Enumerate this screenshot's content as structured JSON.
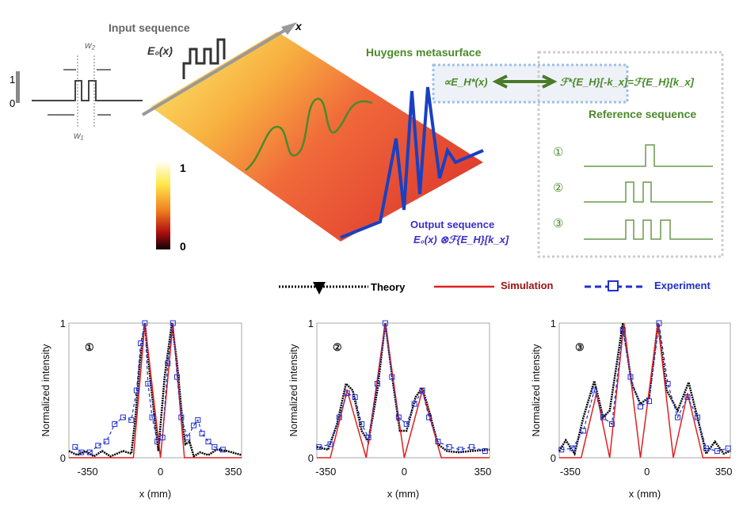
{
  "diagram": {
    "input_title": "Input sequence",
    "e0": "E₀(x)",
    "x_axis": "x",
    "w2": "w₂",
    "w1": "w₁",
    "level_1": "1",
    "level_0": "0",
    "colorbar_max": "1",
    "colorbar_min": "0",
    "huygens": "Huygens metasurface",
    "formula_left": "∝E_H*(x)",
    "formula_right": "ℱ*{E_H}[-k_x]=ℱ{E_H}[k_x]",
    "reference_title": "Reference sequence",
    "reference_labels": [
      "①",
      "②",
      "③"
    ],
    "output_title": "Output sequence",
    "output_formula": "E₀(x) ⊗ℱ{E_H}[k_x]"
  },
  "legend": {
    "theory": "Theory",
    "simulation": "Simulation",
    "experiment": "Experiment"
  },
  "colors": {
    "theory": "#000000",
    "simulation": "#e02020",
    "experiment": "#2030d0",
    "green": "#4a8a2a"
  },
  "chart_data": [
    {
      "type": "line",
      "label": "①",
      "ylabel": "Normalized intensity",
      "xlabel": "x (mm)",
      "xticks": [
        "-350",
        "0",
        "350"
      ],
      "yticks": [
        "0",
        "1"
      ],
      "xlim": [
        -440,
        390
      ],
      "ylim": [
        0,
        1
      ],
      "series": [
        {
          "name": "Theory",
          "points": [
            [
              -440,
              0.05
            ],
            [
              -400,
              0.02
            ],
            [
              -360,
              0.05
            ],
            [
              -320,
              0.01
            ],
            [
              -280,
              0.05
            ],
            [
              -240,
              0.01
            ],
            [
              -180,
              0.05
            ],
            [
              -140,
              0.03
            ],
            [
              -120,
              0.3
            ],
            [
              -100,
              0.7
            ],
            [
              -75,
              1
            ],
            [
              -50,
              0.6
            ],
            [
              -10,
              0.05
            ],
            [
              20,
              0.6
            ],
            [
              55,
              1
            ],
            [
              80,
              0.7
            ],
            [
              110,
              0.2
            ],
            [
              120,
              0.1
            ],
            [
              140,
              0.12
            ],
            [
              160,
              0.01
            ],
            [
              190,
              0.04
            ],
            [
              230,
              0.02
            ],
            [
              270,
              0.06
            ],
            [
              320,
              0.05
            ],
            [
              390,
              0.02
            ]
          ]
        },
        {
          "name": "Simulation",
          "points": [
            [
              -440,
              0
            ],
            [
              -130,
              0
            ],
            [
              -75,
              1
            ],
            [
              0,
              0
            ],
            [
              60,
              1
            ],
            [
              115,
              0
            ],
            [
              390,
              0
            ]
          ]
        },
        {
          "name": "Experiment",
          "points": [
            [
              -410,
              0.08
            ],
            [
              -380,
              0.04
            ],
            [
              -340,
              0.04
            ],
            [
              -300,
              0.09
            ],
            [
              -260,
              0.12
            ],
            [
              -220,
              0.25
            ],
            [
              -180,
              0.3
            ],
            [
              -140,
              0.28
            ],
            [
              -115,
              0.5
            ],
            [
              -95,
              0.85
            ],
            [
              -75,
              1
            ],
            [
              -60,
              0.55
            ],
            [
              -40,
              0.3
            ],
            [
              -15,
              0.12
            ],
            [
              10,
              0.15
            ],
            [
              35,
              0.7
            ],
            [
              60,
              1
            ],
            [
              80,
              0.6
            ],
            [
              100,
              0.3
            ],
            [
              130,
              0.15
            ],
            [
              160,
              0.24
            ],
            [
              180,
              0.28
            ],
            [
              200,
              0.18
            ],
            [
              230,
              0.12
            ],
            [
              260,
              0.08
            ],
            [
              300,
              0.06
            ]
          ]
        }
      ]
    },
    {
      "type": "line",
      "label": "②",
      "ylabel": "Normalized intensity",
      "xlabel": "x (mm)",
      "xticks": [
        "-350",
        "0",
        "350"
      ],
      "yticks": [
        "0",
        "1"
      ],
      "xlim": [
        -390,
        380
      ],
      "ylim": [
        0,
        1
      ],
      "series": [
        {
          "name": "Theory",
          "points": [
            [
              -390,
              0.08
            ],
            [
              -340,
              0.06
            ],
            [
              -300,
              0.25
            ],
            [
              -260,
              0.55
            ],
            [
              -230,
              0.5
            ],
            [
              -190,
              0.2
            ],
            [
              -160,
              0.12
            ],
            [
              -120,
              0.5
            ],
            [
              -85,
              1
            ],
            [
              -50,
              0.55
            ],
            [
              -20,
              0.2
            ],
            [
              10,
              0.2
            ],
            [
              50,
              0.45
            ],
            [
              80,
              0.52
            ],
            [
              110,
              0.35
            ],
            [
              150,
              0.1
            ],
            [
              190,
              0.05
            ],
            [
              240,
              0.04
            ],
            [
              300,
              0.05
            ],
            [
              380,
              0.06
            ]
          ]
        },
        {
          "name": "Simulation",
          "points": [
            [
              -390,
              0
            ],
            [
              -330,
              0
            ],
            [
              -255,
              0.5
            ],
            [
              -170,
              0
            ],
            [
              -85,
              1
            ],
            [
              0,
              0
            ],
            [
              80,
              0.5
            ],
            [
              165,
              0
            ],
            [
              380,
              0
            ]
          ]
        },
        {
          "name": "Experiment",
          "points": [
            [
              -380,
              0.08
            ],
            [
              -330,
              0.1
            ],
            [
              -290,
              0.3
            ],
            [
              -255,
              0.48
            ],
            [
              -220,
              0.45
            ],
            [
              -190,
              0.25
            ],
            [
              -160,
              0.15
            ],
            [
              -120,
              0.55
            ],
            [
              -85,
              1
            ],
            [
              -55,
              0.6
            ],
            [
              -25,
              0.3
            ],
            [
              10,
              0.25
            ],
            [
              45,
              0.4
            ],
            [
              80,
              0.5
            ],
            [
              110,
              0.3
            ],
            [
              150,
              0.12
            ],
            [
              200,
              0.08
            ],
            [
              250,
              0.06
            ],
            [
              300,
              0.08
            ],
            [
              360,
              0.05
            ]
          ]
        }
      ]
    },
    {
      "type": "line",
      "label": "③",
      "ylabel": "Normalized intensity",
      "xlabel": "x (mm)",
      "xticks": [
        "-350",
        "0",
        "350"
      ],
      "yticks": [
        "0",
        "1"
      ],
      "xlim": [
        -400,
        380
      ],
      "ylim": [
        0,
        1
      ],
      "series": [
        {
          "name": "Theory",
          "points": [
            [
              -400,
              0.05
            ],
            [
              -370,
              0.13
            ],
            [
              -330,
              0.03
            ],
            [
              -290,
              0.3
            ],
            [
              -240,
              0.57
            ],
            [
              -200,
              0.3
            ],
            [
              -170,
              0.35
            ],
            [
              -110,
              1
            ],
            [
              -70,
              0.55
            ],
            [
              -30,
              0.4
            ],
            [
              10,
              0.45
            ],
            [
              50,
              1
            ],
            [
              90,
              0.5
            ],
            [
              140,
              0.35
            ],
            [
              190,
              0.56
            ],
            [
              230,
              0.3
            ],
            [
              270,
              0.03
            ],
            [
              310,
              0.12
            ],
            [
              350,
              0.03
            ],
            [
              380,
              0.05
            ]
          ]
        },
        {
          "name": "Simulation",
          "points": [
            [
              -400,
              0
            ],
            [
              -300,
              0
            ],
            [
              -230,
              0.48
            ],
            [
              -170,
              0
            ],
            [
              -105,
              1
            ],
            [
              -30,
              0
            ],
            [
              50,
              1
            ],
            [
              120,
              0
            ],
            [
              185,
              0.48
            ],
            [
              255,
              0
            ],
            [
              380,
              0
            ]
          ]
        },
        {
          "name": "Experiment",
          "points": [
            [
              -390,
              0.06
            ],
            [
              -340,
              0.07
            ],
            [
              -290,
              0.2
            ],
            [
              -240,
              0.5
            ],
            [
              -200,
              0.3
            ],
            [
              -160,
              0.25
            ],
            [
              -110,
              0.95
            ],
            [
              -75,
              0.6
            ],
            [
              -30,
              0.38
            ],
            [
              10,
              0.42
            ],
            [
              55,
              1
            ],
            [
              95,
              0.55
            ],
            [
              140,
              0.3
            ],
            [
              185,
              0.45
            ],
            [
              230,
              0.3
            ],
            [
              270,
              0.07
            ],
            [
              320,
              0.05
            ],
            [
              370,
              0.07
            ]
          ]
        }
      ]
    }
  ]
}
